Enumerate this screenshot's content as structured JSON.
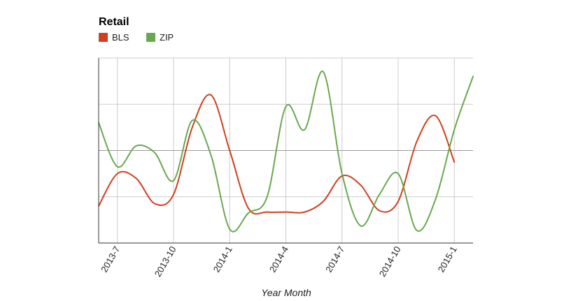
{
  "chart_data": {
    "type": "line",
    "title": "Retail",
    "xlabel": "Year Month",
    "ylabel": "",
    "x": [
      "2013-6",
      "2013-7",
      "2013-8",
      "2013-9",
      "2013-10",
      "2013-11",
      "2013-12",
      "2014-1",
      "2014-2",
      "2014-3",
      "2014-4",
      "2014-5",
      "2014-6",
      "2014-7",
      "2014-8",
      "2014-9",
      "2014-10",
      "2014-11",
      "2014-12",
      "2015-1",
      "2015-2"
    ],
    "tick_labels": [
      "2013-7",
      "2013-10",
      "2014-1",
      "2014-4",
      "2014-7",
      "2014-10",
      "2015-1"
    ],
    "tick_indices": [
      1,
      4,
      7,
      10,
      13,
      16,
      19
    ],
    "ylim": [
      0,
      4
    ],
    "y_gridlines": [
      0,
      1,
      2,
      3,
      4
    ],
    "baseline_y": 2,
    "grid": true,
    "smooth": true,
    "legend_position": "top-left",
    "series": [
      {
        "name": "BLS",
        "color": "#d04020",
        "values": [
          0.8,
          1.5,
          1.4,
          0.85,
          1.05,
          2.5,
          3.2,
          2.0,
          0.75,
          0.67,
          0.67,
          0.67,
          0.9,
          1.45,
          1.25,
          0.7,
          0.9,
          2.2,
          2.75,
          1.75,
          null
        ]
      },
      {
        "name": "ZIP",
        "color": "#6aa84f",
        "values": [
          2.6,
          1.65,
          2.1,
          1.95,
          1.35,
          2.65,
          1.9,
          0.3,
          0.65,
          1.0,
          2.95,
          2.45,
          3.7,
          1.5,
          0.37,
          1.05,
          1.5,
          0.27,
          0.95,
          2.45,
          3.6
        ]
      }
    ]
  }
}
